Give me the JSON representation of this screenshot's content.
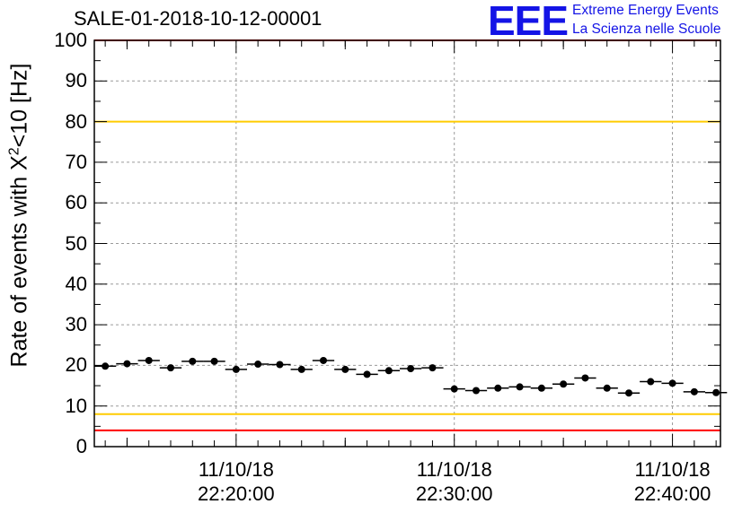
{
  "chart_data": {
    "type": "scatter",
    "title": "SALE-01-2018-10-12-00001",
    "ylabel_prefix": "Rate of events with X",
    "ylabel_sup": "2",
    "ylabel_suffix": "<10 [Hz]",
    "xlabel": "",
    "ylim": [
      0,
      100
    ],
    "yticks": [
      "0",
      "10",
      "20",
      "30",
      "40",
      "50",
      "60",
      "70",
      "80",
      "90",
      "100"
    ],
    "xlim_minutes": [
      -6.5,
      22.2
    ],
    "xticks": [
      {
        "minute": 0,
        "date": "11/10/18",
        "time": "22:20:00"
      },
      {
        "minute": 10,
        "date": "11/10/18",
        "time": "22:30:00"
      },
      {
        "minute": 20,
        "date": "11/10/18",
        "time": "22:40:00"
      }
    ],
    "bin_width_minutes": 1,
    "points": {
      "x_minutes": [
        -6.0,
        -5.0,
        -4.0,
        -3.0,
        -2.0,
        -1.0,
        0.0,
        1.0,
        2.0,
        3.0,
        4.0,
        5.0,
        6.0,
        7.0,
        8.0,
        9.0,
        10.0,
        11.0,
        12.0,
        13.0,
        14.0,
        15.0,
        16.0,
        17.0,
        18.0,
        19.0,
        20.0,
        21.0,
        22.0
      ],
      "y_values": [
        19.8,
        20.4,
        21.2,
        19.4,
        21.0,
        21.0,
        19.0,
        20.3,
        20.2,
        19.0,
        21.2,
        19.0,
        17.8,
        18.7,
        19.2,
        19.4,
        14.2,
        13.8,
        14.4,
        14.7,
        14.4,
        15.4,
        16.9,
        14.4,
        13.2,
        16.0,
        15.6,
        13.5,
        13.3
      ]
    },
    "reference_lines": [
      {
        "name": "upper-red-limit",
        "value": 100,
        "color": "#ff0000"
      },
      {
        "name": "upper-yellow-limit",
        "value": 80,
        "color": "#ffcc00"
      },
      {
        "name": "lower-yellow-limit",
        "value": 8,
        "color": "#ffcc00"
      },
      {
        "name": "lower-red-limit",
        "value": 4,
        "color": "#ff0000"
      }
    ],
    "grid": true,
    "marker_color": "#000000"
  },
  "logo": {
    "mark": "EEE",
    "line1": "Extreme Energy Events",
    "line2": "La Scienza nelle Scuole",
    "color": "#1414e6"
  }
}
